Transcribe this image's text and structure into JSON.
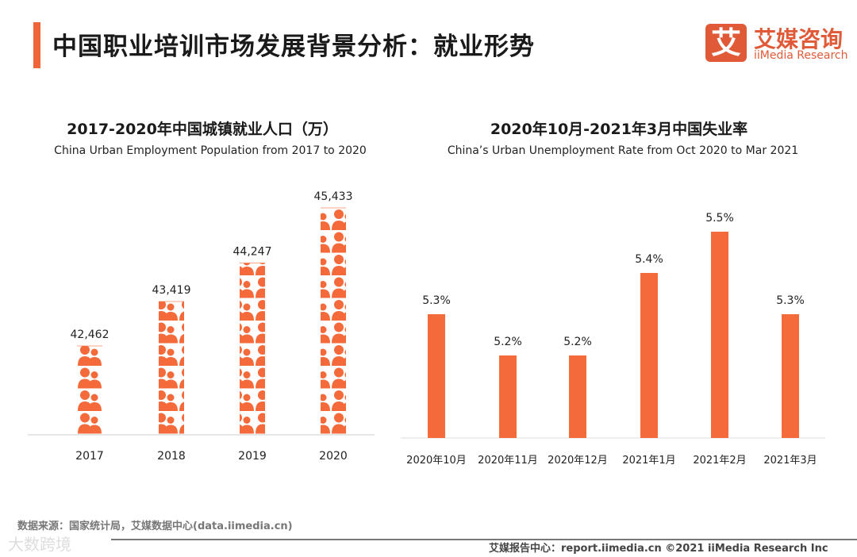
{
  "header": {
    "title": "中国职业培训市场发展背景分析：就业形势",
    "logo_mark": "艾",
    "logo_cn": "艾媒咨询",
    "logo_en": "iiMedia Research"
  },
  "colors": {
    "accent": "#f0643a",
    "bar": "#f46a3a"
  },
  "chart_data": [
    {
      "type": "bar",
      "title": "2017-2020年中国城镇就业人口（万）",
      "subtitle": "China Urban Employment Population from 2017 to 2020",
      "categories": [
        "2017",
        "2018",
        "2019",
        "2020"
      ],
      "values": [
        42462,
        43419,
        44247,
        45433
      ],
      "labels": [
        "42,462",
        "43,419",
        "44,247",
        "45,433"
      ],
      "ylim": [
        40550,
        46000
      ],
      "style": "pictogram"
    },
    {
      "type": "bar",
      "title": "2020年10月-2021年3月中国失业率",
      "subtitle": "China’s  Urban Unemployment Rate from Oct 2020 to Mar 2021",
      "categories": [
        "2020年10月",
        "2020年11月",
        "2020年12月",
        "2021年1月",
        "2021年2月",
        "2021年3月"
      ],
      "values": [
        5.3,
        5.2,
        5.2,
        5.4,
        5.5,
        5.3
      ],
      "labels": [
        "5.3%",
        "5.2%",
        "5.2%",
        "5.4%",
        "5.5%",
        "5.3%"
      ],
      "ylim": [
        5.0,
        5.6
      ]
    }
  ],
  "footer": {
    "source": "数据来源：国家统计局，艾媒数据中心(data.iimedia.cn)",
    "watermark": "大数跨境",
    "report": "艾媒报告中心：report.iimedia.cn   ©2021  iiMedia Research  Inc"
  }
}
